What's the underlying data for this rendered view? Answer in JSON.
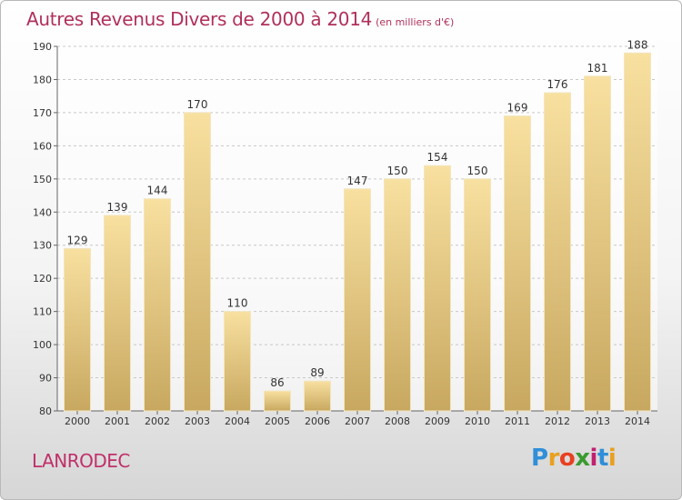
{
  "title": "Autres Revenus Divers de 2000 à 2014",
  "title_unit": "(en milliers d'€)",
  "commune": "LANRODEC",
  "logo": {
    "letters": [
      "P",
      "r",
      "o",
      "x",
      "i",
      "t",
      "i"
    ],
    "colors": [
      "#2f8fd8",
      "#e8a020",
      "#e84020",
      "#3a9a30",
      "#c02070",
      "#2f8fd8",
      "#e8a020"
    ]
  },
  "chart_data": {
    "type": "bar",
    "categories": [
      "2000",
      "2001",
      "2002",
      "2003",
      "2004",
      "2005",
      "2006",
      "2007",
      "2008",
      "2009",
      "2010",
      "2011",
      "2012",
      "2013",
      "2014"
    ],
    "values": [
      129,
      139,
      144,
      170,
      110,
      86,
      89,
      147,
      150,
      154,
      150,
      169,
      176,
      181,
      188
    ],
    "ylim": [
      80,
      190
    ],
    "yticks": [
      80,
      90,
      100,
      110,
      120,
      130,
      140,
      150,
      160,
      170,
      180,
      190
    ],
    "grid": true,
    "bar_color_top": "#f8e0a0",
    "bar_color_bottom": "#c8a860"
  }
}
